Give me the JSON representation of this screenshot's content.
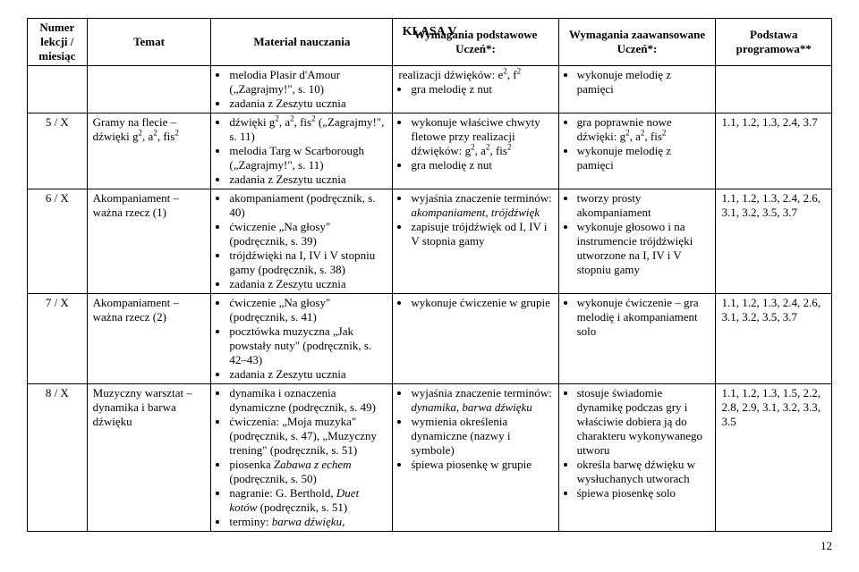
{
  "title": "KLASA V",
  "headers": {
    "col1": "Numer lekcji / miesiąc",
    "col2": "Temat",
    "col3": "Materiał nauczania",
    "col4": "Wymagania podstawowe Uczeń*:",
    "col5": "Wymagania zaawansowane Uczeń*:",
    "col6": "Podstawa programowa**"
  },
  "rows": [
    {
      "num": "",
      "temat": "",
      "mat": [
        "melodia Plasir d'Amour („Zagrajmy!\", s. 10)",
        "zadania z Zeszytu ucznia"
      ],
      "podst": [
        "realizacji dźwięków: e², f²",
        "gra melodię z nut"
      ],
      "podst_first_is_cont": true,
      "zaaw": [
        "wykonuje melodię z pamięci"
      ],
      "prog": ""
    },
    {
      "num": "5 / X",
      "temat": "Gramy na flecie – dźwięki g², a², fis²",
      "mat": [
        "dźwięki g², a², fis² („Zagrajmy!\", s. 11)",
        "melodia Targ w Scarborough („Zagrajmy!\", s. 11)",
        "zadania z Zeszytu ucznia"
      ],
      "podst": [
        "wykonuje właściwe chwyty fletowe przy realizacji dźwięków: g², a², fis²",
        "gra melodię z nut"
      ],
      "zaaw": [
        "gra poprawnie nowe dźwięki: g², a², fis²",
        "wykonuje melodię z pamięci"
      ],
      "prog": "1.1, 1.2, 1.3, 2.4, 3.7"
    },
    {
      "num": "6 / X",
      "temat": "Akompaniament – ważna rzecz (1)",
      "mat": [
        "akompaniament (podręcznik, s. 40)",
        "ćwiczenie „Na głosy\" (podręcznik, s. 39)",
        "trójdźwięki na I, IV i V stopniu gamy (podręcznik, s. 38)",
        "zadania z Zeszytu ucznia"
      ],
      "podst": [
        "wyjaśnia znaczenie terminów: akompaniament, trójdźwięk",
        "zapisuje trójdźwięk od I, IV i V stopnia gamy"
      ],
      "podst_italic": [
        "akompaniament, trójdźwięk"
      ],
      "zaaw": [
        "tworzy prosty akompaniament",
        "wykonuje głosowo i na instrumencie trójdźwięki utworzone na I, IV i V stopniu gamy"
      ],
      "prog": "1.1, 1.2, 1.3, 2.4, 2.6, 3.1, 3.2, 3.5, 3.7"
    },
    {
      "num": "7 / X",
      "temat": "Akompaniament – ważna rzecz (2)",
      "mat": [
        "ćwiczenie „Na głosy\" (podręcznik, s. 41)",
        "pocztówka muzyczna „Jak powstały nuty\" (podręcznik, s. 42–43)",
        "zadania z Zeszytu ucznia"
      ],
      "podst": [
        "wykonuje ćwiczenie w grupie"
      ],
      "zaaw": [
        "wykonuje ćwiczenie – gra melodię i akompaniament solo"
      ],
      "prog": "1.1, 1.2, 1.3, 2.4, 2.6, 3.1, 3.2, 3.5, 3.7"
    },
    {
      "num": "8 / X",
      "temat": "Muzyczny warsztat – dynamika i barwa dźwięku",
      "mat": [
        "dynamika i oznaczenia dynamiczne (podręcznik, s. 49)",
        "ćwiczenia: „Moja muzyka\" (podręcznik, s. 47), „Muzyczny trening\" (podręcznik, s. 51)",
        "piosenka Zabawa z echem (podręcznik, s. 50)",
        "nagranie: G. Berthold, Duet kotów (podręcznik, s. 51)",
        "terminy: barwa dźwięku,"
      ],
      "mat_italic": [
        "Zabawa z echem",
        "Duet kotów",
        "barwa dźwięku"
      ],
      "podst": [
        "wyjaśnia znaczenie terminów: dynamika, barwa dźwięku",
        "wymienia określenia dynamiczne (nazwy i symbole)",
        "śpiewa piosenkę w grupie"
      ],
      "podst_italic": [
        "dynamika, barwa dźwięku"
      ],
      "zaaw": [
        "stosuje świadomie dynamikę podczas gry i właściwie dobiera ją do charakteru wykonywanego utworu",
        "określa barwę dźwięku w wysłuchanych utworach",
        "śpiewa piosenkę solo"
      ],
      "prog": "1.1, 1.2, 1.3, 1.5, 2.2, 2.8, 2.9, 3.1, 3.2, 3.3, 3.5"
    }
  ],
  "page_number": "12"
}
